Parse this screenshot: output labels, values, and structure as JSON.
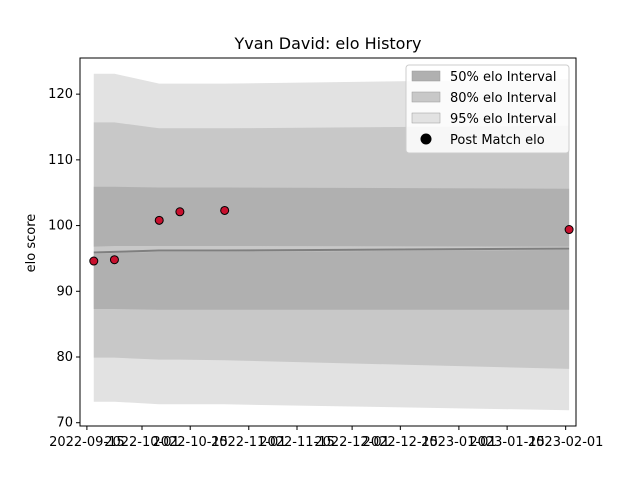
{
  "chart_data": {
    "type": "line",
    "title": "Yvan David: elo History",
    "xlabel": "",
    "ylabel": "elo score",
    "x_ticks": [
      "2022-09-15",
      "2022-10-01",
      "2022-10-15",
      "2022-11-01",
      "2022-11-15",
      "2022-12-01",
      "2022-12-15",
      "2023-01-01",
      "2023-01-15",
      "2023-02-01"
    ],
    "xlim": [
      "2022-09-13",
      "2023-02-04"
    ],
    "y_ticks": [
      70,
      80,
      90,
      100,
      110,
      120
    ],
    "ylim": [
      69.5,
      125.5
    ],
    "grid": false,
    "legend": {
      "placement": "top-right",
      "entries": [
        {
          "label": "50% elo Interval",
          "color": "#b0b0b0",
          "kind": "patch"
        },
        {
          "label": "80% elo Interval",
          "color": "#c8c8c8",
          "kind": "patch"
        },
        {
          "label": "95% elo Interval",
          "color": "#e2e2e2",
          "kind": "patch"
        },
        {
          "label": "Post Match elo",
          "color": "#000000",
          "kind": "marker"
        }
      ]
    },
    "interval_dates": [
      "2022-09-17",
      "2022-09-23",
      "2022-10-06",
      "2022-10-12",
      "2022-10-25",
      "2023-02-02"
    ],
    "mean_line": [
      95.9,
      96.0,
      96.2,
      96.2,
      96.2,
      96.5
    ],
    "band_50": {
      "upper_lower": [
        [
          105.9,
          96.8
        ],
        [
          105.9,
          96.9
        ],
        [
          105.8,
          96.9
        ],
        [
          105.8,
          96.9
        ],
        [
          105.8,
          96.9
        ],
        [
          105.6,
          96.8
        ]
      ],
      "lower_lower": [
        87.3,
        87.3,
        87.2,
        87.2,
        87.2,
        87.2
      ],
      "lower_upper": [
        95.7,
        95.8,
        96.0,
        96.0,
        96.0,
        96.3
      ]
    },
    "band_80": {
      "upper": [
        115.7,
        115.7,
        114.8,
        114.8,
        114.8,
        115.2
      ],
      "lower": [
        79.9,
        79.9,
        79.6,
        79.6,
        79.5,
        78.2
      ]
    },
    "band_95": {
      "upper": [
        123.1,
        123.1,
        121.6,
        121.6,
        121.6,
        122.3
      ],
      "lower": [
        73.2,
        73.2,
        72.8,
        72.8,
        72.8,
        71.9
      ]
    },
    "series": [
      {
        "name": "Post Match elo",
        "color": "#c8102e",
        "points": [
          {
            "x": "2022-09-17",
            "y": 94.6
          },
          {
            "x": "2022-09-23",
            "y": 94.8
          },
          {
            "x": "2022-10-06",
            "y": 100.8
          },
          {
            "x": "2022-10-12",
            "y": 102.1
          },
          {
            "x": "2022-10-25",
            "y": 102.3
          },
          {
            "x": "2023-02-02",
            "y": 99.4
          }
        ]
      }
    ]
  }
}
